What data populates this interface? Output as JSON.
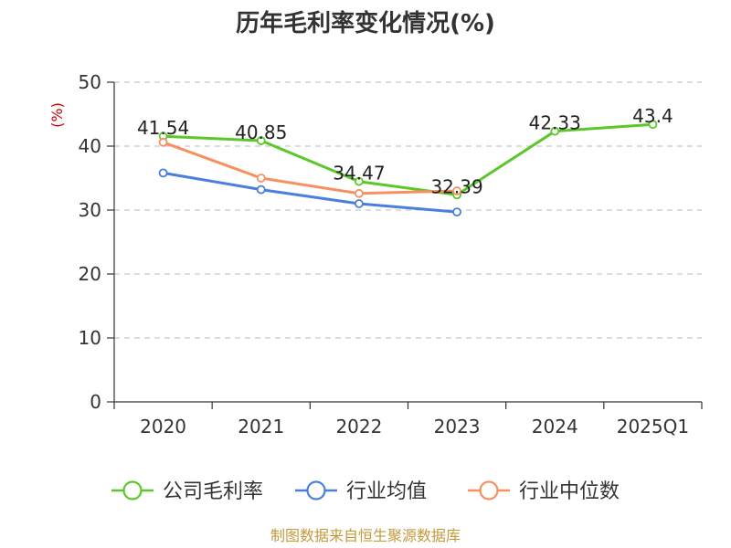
{
  "chart_data": {
    "type": "line",
    "title": "历年毛利率变化情况(%)",
    "ylabel": "(%)",
    "xlabel": "",
    "categories": [
      "2020",
      "2021",
      "2022",
      "2023",
      "2024",
      "2025Q1"
    ],
    "ylim": [
      0,
      50
    ],
    "yticks": [
      0,
      10,
      20,
      30,
      40,
      50
    ],
    "grid": true,
    "legend_position": "bottom",
    "series": [
      {
        "name": "公司毛利率",
        "color": "#5cc72a",
        "values": [
          41.54,
          40.85,
          34.47,
          32.39,
          42.33,
          43.4
        ],
        "labels": [
          "41.54",
          "40.85",
          "34.47",
          "32.39",
          "42.33",
          "43.4"
        ]
      },
      {
        "name": "行业均值",
        "color": "#4a7fdc",
        "values": [
          35.8,
          33.2,
          31.0,
          29.7,
          null,
          null
        ],
        "labels": []
      },
      {
        "name": "行业中位数",
        "color": "#f79060",
        "values": [
          40.6,
          35.0,
          32.6,
          33.0,
          null,
          null
        ],
        "labels": []
      }
    ]
  },
  "source": "制图数据来自恒生聚源数据库"
}
